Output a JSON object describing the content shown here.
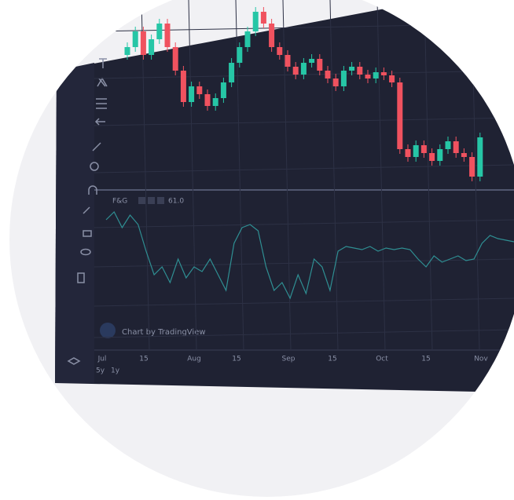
{
  "indicator": {
    "name": "F&G",
    "value_text": "61.0",
    "values": [
      75,
      80,
      70,
      78,
      72,
      55,
      40,
      45,
      35,
      50,
      38,
      45,
      42,
      50,
      40,
      30,
      60,
      70,
      72,
      68,
      45,
      30,
      35,
      25,
      40,
      28,
      50,
      45,
      30,
      55,
      58,
      57,
      56,
      58,
      55,
      57,
      56,
      57,
      56,
      50,
      45,
      52,
      48,
      50,
      52,
      49,
      50,
      60,
      65,
      63,
      62,
      61
    ]
  },
  "candles": {
    "first_open": 170,
    "close": [
      180,
      200,
      170,
      190,
      210,
      180,
      150,
      110,
      130,
      120,
      105,
      115,
      135,
      160,
      180,
      200,
      225,
      210,
      180,
      170,
      155,
      145,
      160,
      165,
      150,
      140,
      130,
      150,
      155,
      145,
      140,
      148,
      144,
      135,
      50,
      40,
      55,
      45,
      35,
      50,
      60,
      45,
      40,
      15,
      65
    ]
  },
  "watermark": "Chart by TradingView",
  "time_axis": [
    "Jul",
    "15",
    "Aug",
    "15",
    "Sep",
    "15",
    "Oct",
    "15",
    "Nov"
  ],
  "ranges": [
    "5y",
    "1y"
  ]
}
